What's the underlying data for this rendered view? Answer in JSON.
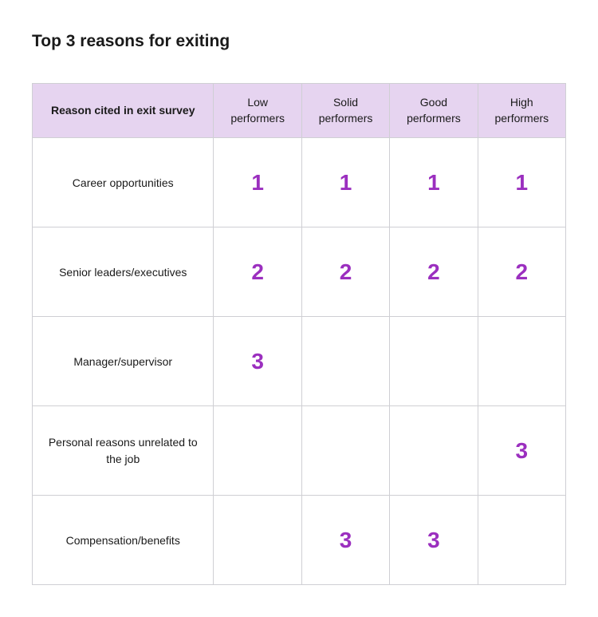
{
  "title": "Top 3 reasons for exiting",
  "table": {
    "type": "table",
    "header_bg": "#e6d4f0",
    "border_color": "#cfcfd4",
    "row_divider_color": "#ececf0",
    "rank_color": "#9b2fbf",
    "rank_fontsize": 28,
    "rank_fontweight": 700,
    "header_fontsize": 14,
    "label_fontsize": 14,
    "row_label_header": "Reason cited in exit survey",
    "columns": [
      "Low performers",
      "Solid performers",
      "Good performers",
      "High performers"
    ],
    "rows": [
      {
        "label": "Career opportunities",
        "ranks": [
          "1",
          "1",
          "1",
          "1"
        ]
      },
      {
        "label": "Senior leaders/executives",
        "ranks": [
          "2",
          "2",
          "2",
          "2"
        ]
      },
      {
        "label": "Manager/supervisor",
        "ranks": [
          "3",
          "",
          "",
          ""
        ]
      },
      {
        "label": "Personal reasons unrelated to the job",
        "ranks": [
          "",
          "",
          "",
          "3"
        ]
      },
      {
        "label": "Compensation/benefits",
        "ranks": [
          "",
          "3",
          "3",
          ""
        ]
      }
    ]
  }
}
